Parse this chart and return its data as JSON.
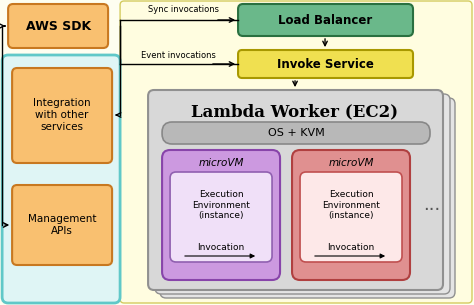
{
  "bg_color": "#fefef0",
  "right_bg_color": "#fffde0",
  "right_bg_border": "#d4cc60",
  "left_panel_bg": "#dff5f5",
  "left_panel_border": "#60c8c8",
  "orange_face": "#f9c070",
  "orange_edge": "#c87820",
  "green_face": "#6ab88a",
  "green_edge": "#2a7040",
  "yellow_face": "#f0e050",
  "yellow_edge": "#a89800",
  "worker_face": "#d8d8d8",
  "worker_edge": "#909090",
  "worker_shadow_face": "#e4e4e4",
  "kvm_face": "#b8b8b8",
  "kvm_edge": "#888888",
  "mvm1_face": "#cc99e0",
  "mvm1_edge": "#8844aa",
  "mvm2_face": "#e09090",
  "mvm2_edge": "#b04040",
  "ee1_face": "#f0e0f8",
  "ee1_edge": "#9060b0",
  "ee2_face": "#fde8e8",
  "ee2_edge": "#c05050",
  "aws_sdk": "AWS SDK",
  "integration": "Integration\nwith other\nservices",
  "management": "Management\nAPIs",
  "load_balancer": "Load Balancer",
  "invoke_service": "Invoke Service",
  "os_kvm": "OS + KVM",
  "micro_vm": "microVM",
  "exec_env": "Execution\nEnvironment\n(instance)",
  "invocation": "Invocation",
  "sync_inv": "Sync invocations",
  "event_inv": "Event invocations",
  "dots": "...",
  "title": "Lambda Worker (EC2)"
}
